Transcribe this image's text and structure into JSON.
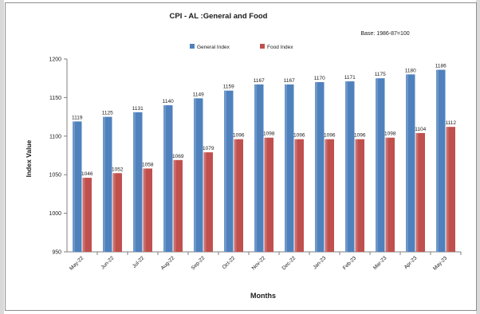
{
  "chart_data": {
    "type": "bar",
    "title": "CPI - AL :General and Food",
    "subtitle": "Base: 1986-87=100",
    "xlabel": "Months",
    "ylabel": "Index Value",
    "ylim": [
      950,
      1200
    ],
    "yticks": [
      950,
      1000,
      1050,
      1100,
      1150,
      1200
    ],
    "grid": false,
    "legend": "top-center",
    "categories": [
      "May-22",
      "Jun-22",
      "Jul-22",
      "Aug-22",
      "Sep-22",
      "Oct-22",
      "Nov-22",
      "Dec-22",
      "Jan-23",
      "Feb-23",
      "Mar-23",
      "Apr-23",
      "May-23"
    ],
    "series": [
      {
        "name": "General Index",
        "color": "#4f81bd",
        "values": [
          1119,
          1125,
          1131,
          1140,
          1149,
          1159,
          1167,
          1167,
          1170,
          1171,
          1175,
          1180,
          1186
        ]
      },
      {
        "name": "Food Index",
        "color": "#c0504d",
        "values": [
          1046,
          1052,
          1058,
          1069,
          1079,
          1096,
          1098,
          1096,
          1096,
          1096,
          1098,
          1104,
          1112
        ]
      }
    ]
  }
}
